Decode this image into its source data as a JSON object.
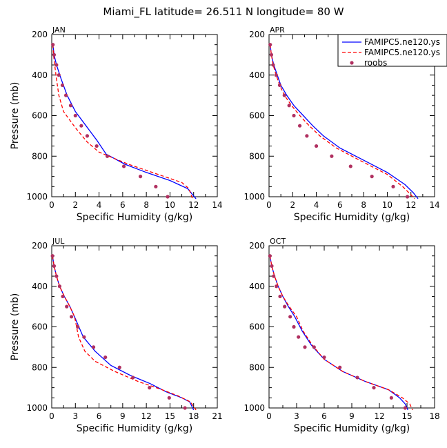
{
  "title": "Miami_FL  latitude= 26.511 N longitude= 80 W",
  "chart_data": [
    {
      "type": "line",
      "panel": "JAN",
      "xlabel": "Specific Humidity (g/kg)",
      "ylabel": "Pressure (mb)",
      "xlim": [
        0,
        14
      ],
      "ylim": [
        1000,
        200
      ],
      "xticks": [
        "0",
        "2",
        "4",
        "6",
        "8",
        "10",
        "12",
        "14"
      ],
      "yticks": [
        "200",
        "400",
        "600",
        "800",
        "1000"
      ],
      "series": [
        {
          "name": "FAMIPC5.ne120.ys",
          "style": "solid",
          "color": "#0000ff",
          "x": [
            0.1,
            0.2,
            0.4,
            0.8,
            1.3,
            2.0,
            2.9,
            3.8,
            4.6,
            6.2,
            8.0,
            10.0,
            11.5,
            12.2
          ],
          "y": [
            250,
            300,
            350,
            420,
            500,
            580,
            650,
            720,
            790,
            840,
            880,
            920,
            960,
            1010
          ]
        },
        {
          "name": "FAMIPC5.ne120.ys",
          "style": "dashed",
          "color": "#ff0000",
          "x": [
            0.1,
            0.15,
            0.25,
            0.4,
            0.6,
            1.0,
            2.0,
            3.0,
            4.0,
            6.5,
            9.0,
            11.0,
            11.6,
            11.9
          ],
          "y": [
            250,
            300,
            350,
            420,
            500,
            580,
            660,
            730,
            780,
            840,
            890,
            930,
            960,
            1010
          ]
        }
      ],
      "obs": {
        "name": "roobs",
        "color": "#b03060",
        "x": [
          0.1,
          0.2,
          0.4,
          0.6,
          0.9,
          1.2,
          1.6,
          2.0,
          2.5,
          3.0,
          3.8,
          4.7,
          6.1,
          7.5,
          8.8,
          9.8
        ],
        "y": [
          250,
          300,
          350,
          400,
          450,
          500,
          550,
          600,
          650,
          700,
          750,
          800,
          850,
          900,
          950,
          1000
        ]
      }
    },
    {
      "type": "line",
      "panel": "APR",
      "xlabel": "Specific Humidity (g/kg)",
      "ylabel": "",
      "xlim": [
        0,
        14
      ],
      "ylim": [
        1000,
        200
      ],
      "xticks": [
        "0",
        "2",
        "4",
        "6",
        "8",
        "10",
        "12",
        "14"
      ],
      "yticks": [
        "200",
        "400",
        "600",
        "800",
        "1000"
      ],
      "series": [
        {
          "name": "FAMIPC5.ne120.ys",
          "style": "solid",
          "color": "#0000ff",
          "x": [
            0.1,
            0.2,
            0.4,
            0.7,
            1.0,
            1.5,
            2.1,
            2.9,
            3.7,
            4.6,
            6.0,
            8.0,
            10.0,
            11.5,
            12.2,
            12.6
          ],
          "y": [
            250,
            300,
            350,
            400,
            450,
            500,
            550,
            600,
            650,
            700,
            760,
            820,
            880,
            940,
            980,
            1010
          ]
        },
        {
          "name": "FAMIPC5.ne120.ys",
          "style": "dashed",
          "color": "#ff0000",
          "x": [
            0.1,
            0.2,
            0.35,
            0.6,
            0.9,
            1.3,
            1.9,
            2.6,
            3.4,
            4.3,
            5.7,
            8.0,
            10.0,
            11.3,
            12.0,
            12.3
          ],
          "y": [
            250,
            300,
            350,
            400,
            450,
            500,
            550,
            600,
            650,
            700,
            760,
            830,
            890,
            950,
            990,
            1010
          ]
        }
      ],
      "obs": {
        "name": "roobs",
        "color": "#b03060",
        "x": [
          0.1,
          0.2,
          0.35,
          0.6,
          0.9,
          1.3,
          1.7,
          2.1,
          2.6,
          3.2,
          4.0,
          5.3,
          6.9,
          8.7,
          10.5,
          11.7
        ],
        "y": [
          250,
          300,
          350,
          400,
          450,
          500,
          550,
          600,
          650,
          700,
          750,
          800,
          850,
          900,
          950,
          1000
        ]
      }
    },
    {
      "type": "line",
      "panel": "JUL",
      "xlabel": "Specific Humidity (g/kg)",
      "ylabel": "Pressure (mb)",
      "xlim": [
        0,
        21
      ],
      "ylim": [
        1000,
        200
      ],
      "xticks": [
        "0",
        "3",
        "6",
        "9",
        "12",
        "15",
        "18",
        "21"
      ],
      "yticks": [
        "200",
        "400",
        "600",
        "800",
        "1000"
      ],
      "series": [
        {
          "name": "FAMIPC5.ne120.ys",
          "style": "solid",
          "color": "#0000ff",
          "x": [
            0.1,
            0.3,
            0.6,
            1.0,
            1.6,
            2.3,
            3.0,
            4.0,
            5.5,
            7.5,
            10.0,
            12.5,
            14.5,
            16.5,
            17.5,
            18.0
          ],
          "y": [
            250,
            300,
            350,
            400,
            450,
            500,
            560,
            650,
            720,
            790,
            840,
            880,
            920,
            950,
            970,
            1010
          ]
        },
        {
          "name": "FAMIPC5.ne120.ys",
          "style": "dashed",
          "color": "#ff0000",
          "x": [
            0.1,
            0.3,
            0.6,
            1.0,
            1.6,
            2.3,
            2.9,
            3.4,
            4.2,
            5.5,
            8.0,
            11.0,
            14.0,
            16.0,
            17.6,
            18.3
          ],
          "y": [
            250,
            300,
            350,
            400,
            450,
            500,
            550,
            650,
            720,
            770,
            820,
            870,
            910,
            940,
            970,
            1010
          ]
        }
      ],
      "obs": {
        "name": "roobs",
        "color": "#b03060",
        "x": [
          0.1,
          0.3,
          0.6,
          1.0,
          1.4,
          1.9,
          2.5,
          3.3,
          4.1,
          5.3,
          6.8,
          8.6,
          10.3,
          12.4,
          14.9,
          16.9
        ],
        "y": [
          250,
          300,
          350,
          400,
          450,
          500,
          550,
          600,
          650,
          700,
          750,
          800,
          850,
          900,
          950,
          1000
        ]
      }
    },
    {
      "type": "line",
      "panel": "OCT",
      "xlabel": "Specific Humidity (g/kg)",
      "ylabel": "",
      "xlim": [
        0,
        18
      ],
      "ylim": [
        1000,
        200
      ],
      "xticks": [
        "0",
        "3",
        "6",
        "9",
        "12",
        "15",
        "18"
      ],
      "yticks": [
        "200",
        "400",
        "600",
        "800",
        "1000"
      ],
      "series": [
        {
          "name": "FAMIPC5.ne120.ys",
          "style": "solid",
          "color": "#0000ff",
          "x": [
            0.1,
            0.3,
            0.6,
            1.0,
            1.5,
            2.1,
            2.8,
            3.6,
            4.6,
            6.0,
            8.0,
            10.5,
            13.0,
            14.2,
            14.8,
            15.1
          ],
          "y": [
            250,
            300,
            350,
            400,
            450,
            500,
            550,
            620,
            690,
            760,
            820,
            870,
            910,
            950,
            980,
            1010
          ]
        },
        {
          "name": "FAMIPC5.ne120.ys",
          "style": "dashed",
          "color": "#ff0000",
          "x": [
            0.1,
            0.3,
            0.6,
            1.0,
            1.5,
            2.2,
            3.0,
            3.7,
            4.7,
            6.0,
            8.0,
            10.5,
            13.0,
            14.5,
            15.3,
            15.6
          ],
          "y": [
            250,
            300,
            350,
            400,
            450,
            500,
            550,
            620,
            690,
            760,
            820,
            870,
            910,
            950,
            980,
            1010
          ]
        }
      ],
      "obs": {
        "name": "roobs",
        "color": "#b03060",
        "x": [
          0.1,
          0.3,
          0.5,
          0.8,
          1.2,
          1.7,
          2.3,
          2.7,
          3.2,
          3.9,
          4.9,
          6.0,
          7.7,
          9.6,
          11.4,
          13.3,
          14.8
        ],
        "y": [
          250,
          300,
          350,
          400,
          450,
          500,
          550,
          600,
          650,
          700,
          700,
          750,
          800,
          850,
          900,
          950,
          1000
        ]
      }
    }
  ],
  "legend": {
    "items": [
      {
        "label": "FAMIPC5.ne120.ys",
        "kind": "solid",
        "color": "#0000ff"
      },
      {
        "label": "FAMIPC5.ne120.ys",
        "kind": "dashed",
        "color": "#ff0000"
      },
      {
        "label": "roobs",
        "kind": "marker",
        "color": "#b03060"
      }
    ]
  }
}
